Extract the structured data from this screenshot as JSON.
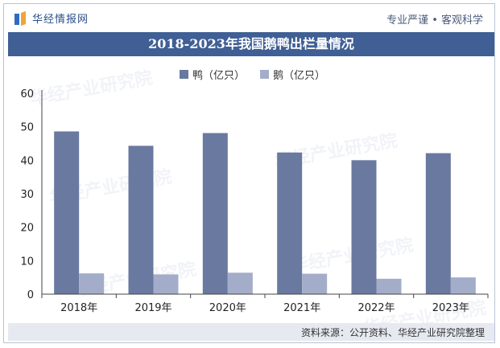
{
  "header": {
    "logo_text": "华经情报网",
    "tagline": "专业严谨 • 客观科学"
  },
  "watermark": "华经产业研究院",
  "source": "资料来源：公开资料、华经产业研究院整理",
  "colors": {
    "duck": "#69799f",
    "goose": "#a3adc9",
    "title_bg": "#3f5f95"
  },
  "chart_data": {
    "type": "bar",
    "title": "2018-2023年我国鹅鸭出栏量情况",
    "categories": [
      "2018年",
      "2019年",
      "2020年",
      "2021年",
      "2022年",
      "2023年"
    ],
    "series": [
      {
        "name": "鸭（亿只）",
        "values": [
          48.6,
          44.3,
          48.1,
          42.3,
          40.0,
          42.1
        ]
      },
      {
        "name": "鹅（亿只）",
        "values": [
          6.2,
          5.9,
          6.4,
          6.1,
          4.6,
          5.0
        ]
      }
    ],
    "ylim": [
      0,
      60
    ],
    "yticks": [
      0,
      10,
      20,
      30,
      40,
      50,
      60
    ],
    "legend": "top-center",
    "grid": false
  }
}
